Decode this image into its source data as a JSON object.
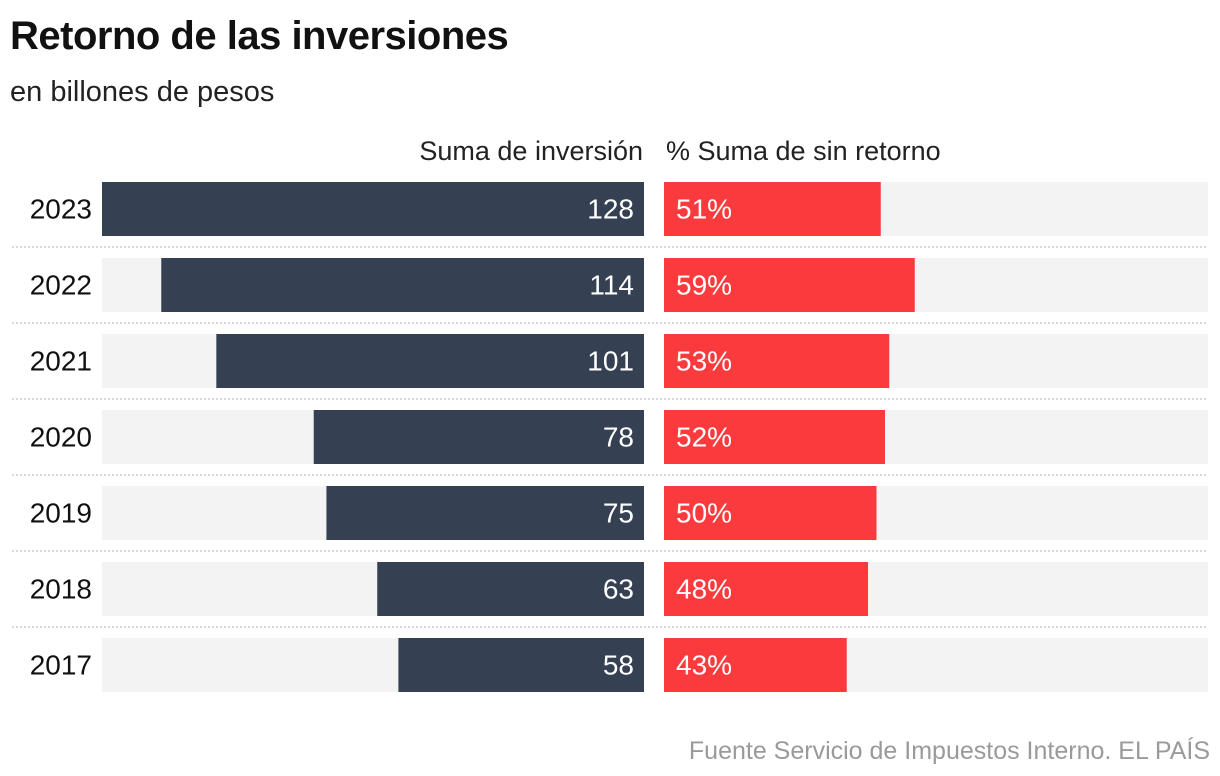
{
  "title": "Retorno de las inversiones",
  "subtitle": "en billones de pesos",
  "source": "Fuente Servicio de Impuestos Interno. EL PAÍS",
  "colors": {
    "investment": "#354052",
    "no_return": "#fb3a3d",
    "track": "#f3f3f3",
    "row_divider": "#b5b5b5",
    "label_on_bar": "#ffffff"
  },
  "chart_data": {
    "type": "bar",
    "orientation": "horizontal",
    "categories": [
      "2023",
      "2022",
      "2021",
      "2020",
      "2019",
      "2018",
      "2017"
    ],
    "series": [
      {
        "name": "Suma de inversión",
        "values": [
          128,
          114,
          101,
          78,
          75,
          63,
          58
        ],
        "labels": [
          "128",
          "114",
          "101",
          "78",
          "75",
          "63",
          "58"
        ],
        "xlim": [
          0,
          128
        ]
      },
      {
        "name": "% Suma de sin retorno",
        "values": [
          51,
          59,
          53,
          52,
          50,
          48,
          43
        ],
        "labels": [
          "51%",
          "59%",
          "53%",
          "52%",
          "50%",
          "48%",
          "43%"
        ],
        "xlim": [
          0,
          128
        ]
      }
    ],
    "grid": false,
    "legend": "column headers above bars"
  }
}
